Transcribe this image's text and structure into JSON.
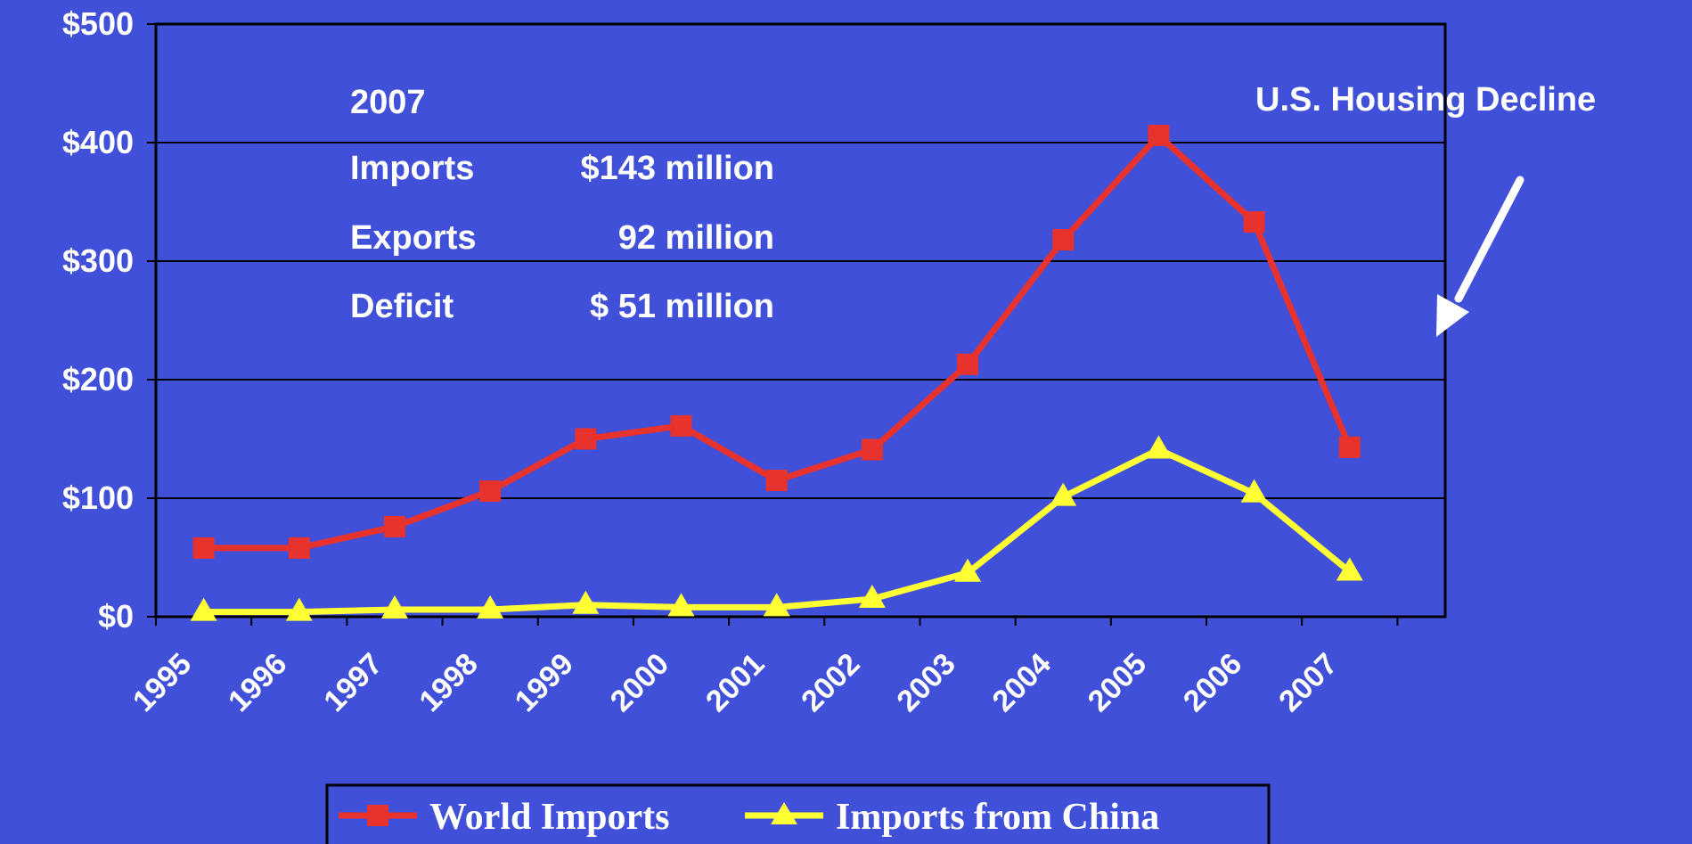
{
  "chart_data": {
    "type": "line",
    "categories": [
      "1995",
      "1996",
      "1997",
      "1998",
      "1999",
      "2000",
      "2001",
      "2002",
      "2003",
      "2004",
      "2005",
      "2006",
      "2007"
    ],
    "y_tick_labels": [
      "$0",
      "$100",
      "$200",
      "$300",
      "$400",
      "$500"
    ],
    "ylim": [
      0,
      500
    ],
    "grid": true,
    "legend_position": "bottom",
    "series": [
      {
        "name": "World Imports",
        "color": "#e8322d",
        "marker": "square",
        "values": [
          58,
          58,
          76,
          106,
          150,
          161,
          115,
          141,
          213,
          318,
          406,
          333,
          143
        ]
      },
      {
        "name": "Imports from China",
        "color": "#ffff33",
        "marker": "triangle",
        "values": [
          4,
          4,
          6,
          6,
          10,
          8,
          8,
          15,
          37,
          101,
          141,
          104,
          38
        ]
      }
    ],
    "info_box": {
      "year": "2007",
      "rows": [
        {
          "label": "Imports",
          "value": "$143 million"
        },
        {
          "label": "Exports",
          "value": "92 million"
        },
        {
          "label": "Deficit",
          "value": "$ 51 million"
        }
      ]
    },
    "annotation": "U.S. Housing Decline"
  }
}
